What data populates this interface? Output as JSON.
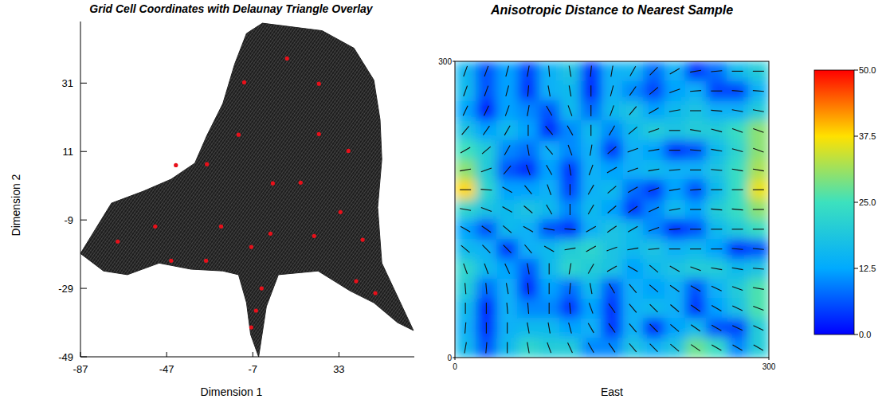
{
  "chart_data": [
    {
      "type": "scatter",
      "title": "Grid Cell Coordinates with Delaunay Triangle Overlay",
      "x_label": "Dimension 1",
      "y_label": "Dimension 2",
      "xlim": [
        -87,
        68
      ],
      "ylim": [
        -49,
        49
      ],
      "xticks": [
        -87,
        -47,
        -7,
        33
      ],
      "yticks": [
        -49,
        -29,
        -9,
        11,
        31
      ],
      "region": {
        "x": [
          -87,
          -72.6,
          -57.8,
          -44.9,
          -33.9,
          -28.3,
          -20.9,
          -15.4,
          -9.9,
          -2.5,
          25.2,
          40.0,
          49.2,
          52.1,
          52.9,
          51.0,
          52.9,
          67.6,
          60.2,
          49.2,
          38.1,
          23.3,
          4.9,
          -0.7,
          -4.3,
          -8.0,
          -9.9,
          -13.6,
          -20.9,
          -35.7,
          -50.5,
          -65.2,
          -76.3
        ],
        "y": [
          -18.8,
          -4.1,
          -0.6,
          2.9,
          7.6,
          15.7,
          25.0,
          36.6,
          45.5,
          48.5,
          46.3,
          41.2,
          31.9,
          20.3,
          8.7,
          -5.3,
          -21.6,
          -41.3,
          -39.0,
          -33.2,
          -29.7,
          -23.9,
          -25.0,
          -34.3,
          -49.0,
          -42.5,
          -33.2,
          -25.0,
          -23.9,
          -23.4,
          -21.6,
          -25.0,
          -23.9
        ]
      },
      "series": [
        {
          "color": "#e8101a",
          "marker": "circle",
          "x": [
            8.9,
            -11.0,
            23.7,
            -13.6,
            23.7,
            37.4,
            -42.7,
            -28.3,
            2.3,
            15.2,
            33.7,
            -52.3,
            -21.7,
            1.2,
            21.5,
            -69.7,
            44.0,
            -7.7,
            -44.9,
            -28.7,
            -2.9,
            41.0,
            49.9,
            -5.5,
            -7.7
          ],
          "values": [
            38.2,
            31.2,
            30.8,
            15.9,
            16.1,
            11.2,
            7.0,
            7.3,
            1.7,
            1.9,
            -6.7,
            -10.9,
            -10.9,
            -13.0,
            -13.7,
            -15.3,
            -14.8,
            -16.9,
            -20.9,
            -20.9,
            -29.0,
            -26.9,
            -30.4,
            -35.5,
            -40.4
          ]
        }
      ]
    },
    {
      "type": "heatmap",
      "title": "Anisotropic Distance to Nearest Sample",
      "x_label": "East",
      "xlim": [
        0,
        300
      ],
      "ylim": [
        0,
        300
      ],
      "xticks": [
        0,
        300
      ],
      "yticks": [
        0,
        300
      ],
      "x": [
        10,
        30,
        50,
        70,
        90,
        110,
        130,
        150,
        170,
        190,
        210,
        230,
        250,
        270,
        290
      ],
      "y": [
        290,
        270,
        250,
        230,
        210,
        190,
        170,
        150,
        130,
        110,
        90,
        70,
        50,
        30,
        10
      ],
      "cells": [
        [
          15,
          6,
          12,
          5,
          14,
          18,
          4,
          14,
          15,
          8,
          14,
          4,
          8,
          16,
          20
        ],
        [
          16,
          6,
          12,
          4,
          14,
          16,
          3,
          14,
          10,
          5,
          12,
          14,
          5,
          5,
          14
        ],
        [
          12,
          2,
          12,
          10,
          6,
          16,
          8,
          16,
          18,
          12,
          16,
          18,
          14,
          14,
          20
        ],
        [
          18,
          12,
          16,
          12,
          3,
          10,
          16,
          10,
          16,
          20,
          18,
          20,
          20,
          24,
          30
        ],
        [
          25,
          20,
          10,
          8,
          14,
          10,
          14,
          4,
          14,
          12,
          4,
          6,
          16,
          22,
          30
        ],
        [
          30,
          20,
          6,
          3,
          12,
          4,
          14,
          12,
          14,
          16,
          14,
          14,
          18,
          24,
          32
        ],
        [
          38,
          22,
          12,
          12,
          14,
          5,
          14,
          16,
          8,
          4,
          12,
          6,
          16,
          24,
          36
        ],
        [
          22,
          18,
          16,
          18,
          16,
          10,
          16,
          12,
          4,
          10,
          16,
          12,
          20,
          24,
          30
        ],
        [
          12,
          6,
          16,
          14,
          6,
          4,
          14,
          18,
          16,
          10,
          3,
          6,
          16,
          20,
          24
        ],
        [
          16,
          14,
          4,
          14,
          16,
          20,
          22,
          18,
          16,
          18,
          14,
          16,
          12,
          4,
          6
        ],
        [
          22,
          16,
          12,
          6,
          16,
          22,
          20,
          18,
          12,
          16,
          18,
          20,
          20,
          16,
          18
        ],
        [
          20,
          8,
          14,
          3,
          12,
          8,
          16,
          6,
          14,
          12,
          14,
          6,
          14,
          20,
          26
        ],
        [
          16,
          3,
          14,
          10,
          10,
          4,
          12,
          4,
          14,
          16,
          14,
          4,
          12,
          18,
          26
        ],
        [
          14,
          4,
          14,
          16,
          16,
          12,
          14,
          4,
          14,
          3,
          12,
          16,
          6,
          5,
          20
        ],
        [
          16,
          6,
          16,
          22,
          20,
          20,
          10,
          10,
          18,
          14,
          18,
          28,
          24,
          10,
          20
        ]
      ],
      "directions": [
        [
          70,
          70,
          75,
          80,
          95,
          100,
          85,
          80,
          60,
          45,
          30,
          10,
          5,
          0,
          0
        ],
        [
          70,
          70,
          75,
          85,
          100,
          100,
          90,
          75,
          55,
          40,
          20,
          5,
          0,
          175,
          175
        ],
        [
          65,
          65,
          70,
          80,
          120,
          110,
          90,
          70,
          50,
          30,
          10,
          0,
          175,
          170,
          170
        ],
        [
          50,
          55,
          60,
          90,
          130,
          120,
          90,
          60,
          40,
          20,
          0,
          170,
          165,
          160,
          160
        ],
        [
          30,
          40,
          60,
          100,
          130,
          110,
          80,
          40,
          20,
          10,
          0,
          175,
          170,
          165,
          160
        ],
        [
          10,
          20,
          50,
          110,
          120,
          100,
          70,
          30,
          20,
          10,
          5,
          0,
          175,
          170,
          170
        ],
        [
          0,
          175,
          150,
          130,
          110,
          90,
          60,
          40,
          30,
          20,
          10,
          5,
          0,
          0,
          0
        ],
        [
          170,
          160,
          150,
          140,
          120,
          90,
          60,
          40,
          35,
          25,
          10,
          0,
          175,
          175,
          0
        ],
        [
          150,
          145,
          140,
          150,
          170,
          175,
          30,
          35,
          30,
          20,
          5,
          0,
          0,
          0,
          0
        ],
        [
          140,
          135,
          135,
          130,
          150,
          10,
          30,
          20,
          10,
          5,
          0,
          0,
          0,
          175,
          175
        ],
        [
          110,
          110,
          115,
          100,
          90,
          80,
          60,
          30,
          150,
          140,
          150,
          160,
          170,
          170,
          175
        ],
        [
          95,
          95,
          100,
          95,
          90,
          85,
          100,
          120,
          130,
          140,
          145,
          150,
          155,
          160,
          170
        ],
        [
          90,
          90,
          95,
          95,
          90,
          95,
          110,
          125,
          130,
          135,
          140,
          145,
          150,
          155,
          160
        ],
        [
          85,
          90,
          90,
          100,
          100,
          105,
          120,
          125,
          130,
          135,
          140,
          145,
          150,
          155,
          155
        ],
        [
          80,
          85,
          90,
          100,
          110,
          115,
          120,
          125,
          130,
          135,
          140,
          145,
          150,
          150,
          150
        ]
      ],
      "colorbar": {
        "range": [
          0,
          50
        ],
        "ticks": [
          {
            "value": 0,
            "label": "0.0"
          },
          {
            "value": 12.5,
            "label": "12.5"
          },
          {
            "value": 25,
            "label": "25.0"
          },
          {
            "value": 37.5,
            "label": "37.5"
          },
          {
            "value": 50,
            "label": "50.0"
          }
        ]
      }
    }
  ]
}
